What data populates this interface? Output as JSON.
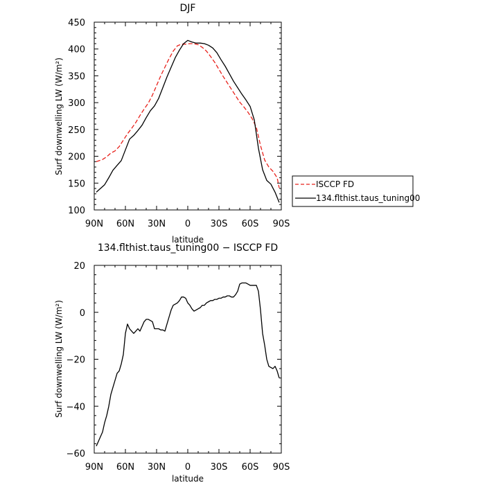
{
  "chart_data": [
    {
      "type": "line",
      "title": "DJF",
      "xlabel": "latitude",
      "ylabel": "Surf downwelling LW (W/m²)",
      "xlim": [
        90,
        -90
      ],
      "ylim": [
        100,
        450
      ],
      "yticks": [
        100,
        150,
        200,
        250,
        300,
        350,
        400,
        450
      ],
      "xticks": [
        90,
        60,
        30,
        0,
        -30,
        -60,
        -90
      ],
      "xtick_labels": [
        "90N",
        "60N",
        "30N",
        "0",
        "30S",
        "60S",
        "90S"
      ],
      "legend_position": "outside-right",
      "series": [
        {
          "name": "ISCCP FD",
          "color": "#e8201a",
          "style": "dashed",
          "x": [
            88,
            82,
            78,
            74,
            70,
            66,
            62,
            58,
            54,
            50,
            46,
            42,
            38,
            34,
            30,
            26,
            22,
            18,
            14,
            10,
            6,
            2,
            -2,
            -6,
            -10,
            -14,
            -18,
            -22,
            -26,
            -30,
            -34,
            -38,
            -42,
            -46,
            -50,
            -54,
            -58,
            -62,
            -66,
            -70,
            -74,
            -78,
            -82,
            -86,
            -88
          ],
          "values": [
            190,
            194,
            199,
            206,
            210,
            218,
            230,
            242,
            252,
            263,
            276,
            288,
            299,
            314,
            332,
            350,
            366,
            382,
            396,
            406,
            409,
            409,
            410,
            410,
            408,
            403,
            396,
            386,
            375,
            362,
            349,
            337,
            325,
            313,
            301,
            292,
            282,
            270,
            254,
            220,
            193,
            180,
            172,
            160,
            141
          ]
        },
        {
          "name": "134.flthist.taus_tuning00",
          "color": "#000000",
          "style": "solid",
          "x": [
            88,
            84,
            80,
            76,
            72,
            68,
            64,
            60,
            56,
            52,
            48,
            44,
            40,
            36,
            32,
            28,
            24,
            20,
            16,
            12,
            8,
            4,
            0,
            -4,
            -8,
            -12,
            -16,
            -20,
            -24,
            -28,
            -32,
            -36,
            -40,
            -44,
            -48,
            -52,
            -56,
            -60,
            -64,
            -68,
            -72,
            -76,
            -80,
            -84,
            -88
          ],
          "values": [
            133,
            140,
            147,
            160,
            174,
            183,
            192,
            212,
            232,
            239,
            248,
            258,
            272,
            285,
            294,
            308,
            328,
            348,
            366,
            384,
            398,
            410,
            416,
            413,
            411,
            411,
            410,
            407,
            402,
            393,
            380,
            368,
            354,
            340,
            328,
            316,
            305,
            293,
            268,
            215,
            175,
            155,
            148,
            133,
            114
          ]
        }
      ]
    },
    {
      "type": "line",
      "title": "134.flthist.taus_tuning00 − ISCCP FD",
      "xlabel": "latitude",
      "ylabel": "Surf downwelling LW (W/m²)",
      "xlim": [
        90,
        -90
      ],
      "ylim": [
        -60,
        20
      ],
      "yticks": [
        -60,
        -40,
        -20,
        0,
        20
      ],
      "xticks": [
        90,
        60,
        30,
        0,
        -30,
        -60,
        -90
      ],
      "xtick_labels": [
        "90N",
        "60N",
        "30N",
        "0",
        "30S",
        "60S",
        "90S"
      ],
      "series": [
        {
          "color": "#000000",
          "style": "solid",
          "x": [
            88,
            86,
            84,
            82,
            80,
            78,
            76,
            74,
            72,
            70,
            68,
            66,
            64,
            62,
            60,
            58,
            56,
            54,
            52,
            50,
            48,
            46,
            44,
            42,
            40,
            38,
            36,
            34,
            32,
            30,
            28,
            26,
            24,
            22,
            20,
            18,
            16,
            14,
            12,
            10,
            8,
            6,
            4,
            2,
            0,
            -2,
            -4,
            -6,
            -8,
            -10,
            -12,
            -14,
            -16,
            -18,
            -20,
            -22,
            -24,
            -26,
            -28,
            -30,
            -32,
            -34,
            -36,
            -38,
            -40,
            -42,
            -44,
            -46,
            -48,
            -50,
            -52,
            -54,
            -56,
            -58,
            -60,
            -62,
            -64,
            -66,
            -68,
            -70,
            -72,
            -74,
            -76,
            -78,
            -80,
            -82,
            -84,
            -86,
            -88
          ],
          "values": [
            -57,
            -55,
            -53,
            -51,
            -47,
            -44,
            -40,
            -35,
            -32,
            -29,
            -26,
            -25,
            -22,
            -18,
            -9,
            -5,
            -7,
            -8,
            -9,
            -8,
            -7,
            -8,
            -6,
            -4,
            -3,
            -3,
            -3.5,
            -4,
            -7,
            -7,
            -7,
            -7.5,
            -7.5,
            -8,
            -5,
            -2,
            1,
            3,
            3.5,
            4,
            5,
            6.5,
            6.5,
            6,
            4,
            3,
            1.5,
            0.5,
            1,
            1.5,
            2,
            3,
            3,
            4,
            4.5,
            5,
            5,
            5.5,
            5.5,
            6,
            6,
            6.5,
            6.5,
            7,
            7,
            6.5,
            6.5,
            7.5,
            9,
            12,
            12.5,
            12.5,
            12.5,
            12,
            11.5,
            11.5,
            11.5,
            11.5,
            9,
            1,
            -9,
            -14,
            -20,
            -23,
            -23.5,
            -24,
            -23,
            -25,
            -28
          ]
        }
      ]
    }
  ]
}
